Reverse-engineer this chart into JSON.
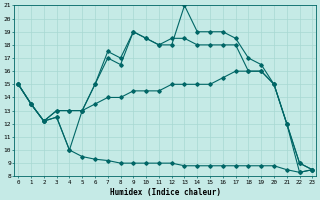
{
  "xlabel": "Humidex (Indice chaleur)",
  "bg_color": "#c5eae6",
  "line_color": "#006666",
  "grid_color": "#a8d8d2",
  "xlim_min": -0.3,
  "xlim_max": 23.3,
  "ylim_min": 8,
  "ylim_max": 21,
  "xticks": [
    0,
    1,
    2,
    3,
    4,
    5,
    6,
    7,
    8,
    9,
    10,
    11,
    12,
    13,
    14,
    15,
    16,
    17,
    18,
    19,
    20,
    21,
    22,
    23
  ],
  "yticks": [
    8,
    9,
    10,
    11,
    12,
    13,
    14,
    15,
    16,
    17,
    18,
    19,
    20,
    21
  ],
  "line1_y": [
    15.0,
    13.5,
    12.2,
    12.5,
    10.0,
    13.0,
    15.0,
    17.0,
    16.5,
    19.0,
    18.5,
    18.0,
    18.0,
    21.0,
    19.0,
    19.0,
    19.0,
    18.5,
    17.0,
    16.5,
    15.0,
    12.0,
    8.3,
    8.5
  ],
  "line2_y": [
    15.0,
    13.5,
    12.2,
    13.0,
    13.0,
    13.0,
    15.0,
    17.5,
    17.0,
    19.0,
    18.5,
    18.0,
    18.5,
    18.5,
    18.0,
    18.0,
    18.0,
    18.0,
    16.0,
    16.0,
    15.0,
    12.0,
    9.0,
    8.5
  ],
  "line3_y": [
    15.0,
    13.5,
    12.2,
    13.0,
    13.0,
    13.0,
    13.5,
    14.0,
    14.0,
    14.5,
    14.5,
    14.5,
    15.0,
    15.0,
    15.0,
    15.0,
    15.5,
    16.0,
    16.0,
    16.0,
    15.0,
    12.0,
    9.0,
    8.5
  ],
  "line4_y": [
    15.0,
    13.5,
    12.2,
    12.5,
    10.0,
    9.5,
    9.3,
    9.2,
    9.0,
    9.0,
    9.0,
    9.0,
    9.0,
    8.8,
    8.8,
    8.8,
    8.8,
    8.8,
    8.8,
    8.8,
    8.8,
    8.5,
    8.3,
    8.5
  ]
}
